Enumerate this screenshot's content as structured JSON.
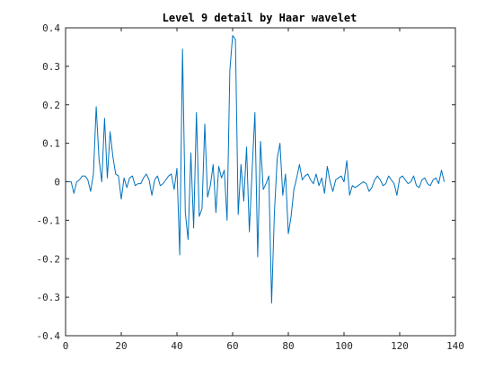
{
  "chart_data": {
    "type": "line",
    "title": "Level 9 detail by Haar wavelet",
    "xlabel": "",
    "ylabel": "",
    "xlim": [
      0,
      140
    ],
    "ylim": [
      -0.4,
      0.4
    ],
    "x_ticks": [
      0,
      20,
      40,
      60,
      80,
      100,
      120,
      140
    ],
    "y_ticks": [
      -0.4,
      -0.3,
      -0.2,
      -0.1,
      0,
      0.1,
      0.2,
      0.3,
      0.4
    ],
    "x_tick_labels": [
      "0",
      "20",
      "40",
      "60",
      "80",
      "100",
      "120",
      "140"
    ],
    "y_tick_labels": [
      "-0.4",
      "-0.3",
      "-0.2",
      "-0.1",
      "0",
      "0.1",
      "0.2",
      "0.3",
      "0.4"
    ],
    "grid": false,
    "series": [
      {
        "color": "#0072BD",
        "x": [
          1,
          2,
          3,
          4,
          5,
          6,
          7,
          8,
          9,
          10,
          11,
          12,
          13,
          14,
          15,
          16,
          17,
          18,
          19,
          20,
          21,
          22,
          23,
          24,
          25,
          26,
          27,
          28,
          29,
          30,
          31,
          32,
          33,
          34,
          35,
          36,
          37,
          38,
          39,
          40,
          41,
          42,
          43,
          44,
          45,
          46,
          47,
          48,
          49,
          50,
          51,
          52,
          53,
          54,
          55,
          56,
          57,
          58,
          59,
          60,
          61,
          62,
          63,
          64,
          65,
          66,
          67,
          68,
          69,
          70,
          71,
          72,
          73,
          74,
          75,
          76,
          77,
          78,
          79,
          80,
          81,
          82,
          83,
          84,
          85,
          86,
          87,
          88,
          89,
          90,
          91,
          92,
          93,
          94,
          95,
          96,
          97,
          98,
          99,
          100,
          101,
          102,
          103,
          104,
          105,
          106,
          107,
          108,
          109,
          110,
          111,
          112,
          113,
          114,
          115,
          116,
          117,
          118,
          119,
          120,
          121,
          122,
          123,
          124,
          125,
          126,
          127,
          128,
          129,
          130,
          131,
          132,
          133,
          134,
          135,
          136
        ],
        "y": [
          0.0,
          0.0,
          -0.03,
          0.0,
          0.005,
          0.015,
          0.015,
          0.005,
          -0.025,
          0.02,
          0.195,
          0.06,
          0.0,
          0.165,
          0.01,
          0.13,
          0.065,
          0.02,
          0.015,
          -0.045,
          0.01,
          -0.015,
          0.01,
          0.015,
          -0.01,
          -0.005,
          -0.005,
          0.01,
          0.02,
          0.005,
          -0.035,
          0.005,
          0.015,
          -0.01,
          -0.005,
          0.005,
          0.015,
          0.02,
          -0.02,
          0.035,
          -0.19,
          0.345,
          -0.08,
          -0.15,
          0.075,
          -0.12,
          0.18,
          -0.09,
          -0.07,
          0.15,
          -0.04,
          -0.01,
          0.045,
          -0.08,
          0.04,
          0.01,
          0.03,
          -0.1,
          0.29,
          0.38,
          0.37,
          -0.085,
          0.045,
          -0.05,
          0.09,
          -0.13,
          0.03,
          0.18,
          -0.195,
          0.105,
          -0.02,
          -0.005,
          0.015,
          -0.315,
          -0.08,
          0.06,
          0.1,
          -0.035,
          0.02,
          -0.135,
          -0.09,
          -0.02,
          0.01,
          0.045,
          0.005,
          0.015,
          0.02,
          0.005,
          -0.005,
          0.02,
          -0.01,
          0.01,
          -0.03,
          0.04,
          0.0,
          -0.025,
          0.005,
          0.01,
          0.015,
          0.0,
          0.055,
          -0.035,
          -0.01,
          -0.015,
          -0.01,
          -0.005,
          0.0,
          -0.005,
          -0.025,
          -0.015,
          0.005,
          0.015,
          0.005,
          -0.01,
          -0.005,
          0.015,
          0.005,
          -0.005,
          -0.035,
          0.01,
          0.015,
          0.005,
          -0.005,
          0.0,
          0.015,
          -0.01,
          -0.015,
          0.005,
          0.01,
          -0.005,
          -0.01,
          0.005,
          0.01,
          -0.005,
          0.03,
          0.0
        ]
      }
    ]
  }
}
